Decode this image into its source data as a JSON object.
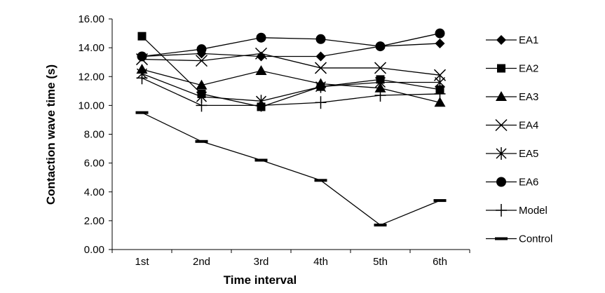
{
  "chart_data": {
    "type": "line",
    "title": "",
    "xlabel": "Time interval",
    "ylabel": "Contaction wave time (s)",
    "categories": [
      "1st",
      "2nd",
      "3rd",
      "4th",
      "5th",
      "6th"
    ],
    "ylim": [
      0,
      16
    ],
    "yticks": [
      "0.00",
      "2.00",
      "4.00",
      "6.00",
      "8.00",
      "10.00",
      "12.00",
      "14.00",
      "16.00"
    ],
    "grid": false,
    "legend_position": "right",
    "series": [
      {
        "name": "EA1",
        "marker": "diamond",
        "values": [
          13.4,
          13.6,
          13.4,
          13.4,
          14.1,
          14.3
        ]
      },
      {
        "name": "EA2",
        "marker": "square",
        "values": [
          14.8,
          10.8,
          9.9,
          11.3,
          11.8,
          11.1
        ]
      },
      {
        "name": "EA3",
        "marker": "triangle",
        "values": [
          12.5,
          11.4,
          12.4,
          11.5,
          11.2,
          10.2
        ]
      },
      {
        "name": "EA4",
        "marker": "x",
        "values": [
          13.2,
          13.1,
          13.6,
          12.6,
          12.6,
          12.1
        ]
      },
      {
        "name": "EA5",
        "marker": "asterisk",
        "values": [
          12.2,
          10.6,
          10.3,
          11.3,
          11.6,
          11.6
        ]
      },
      {
        "name": "EA6",
        "marker": "circle",
        "values": [
          13.4,
          13.9,
          14.7,
          14.6,
          14.1,
          15.0
        ]
      },
      {
        "name": "Model",
        "marker": "plus",
        "values": [
          11.9,
          10.0,
          10.0,
          10.2,
          10.7,
          10.8
        ]
      },
      {
        "name": "Control",
        "marker": "dash",
        "values": [
          9.5,
          7.5,
          6.2,
          4.8,
          1.7,
          3.4
        ]
      }
    ]
  }
}
